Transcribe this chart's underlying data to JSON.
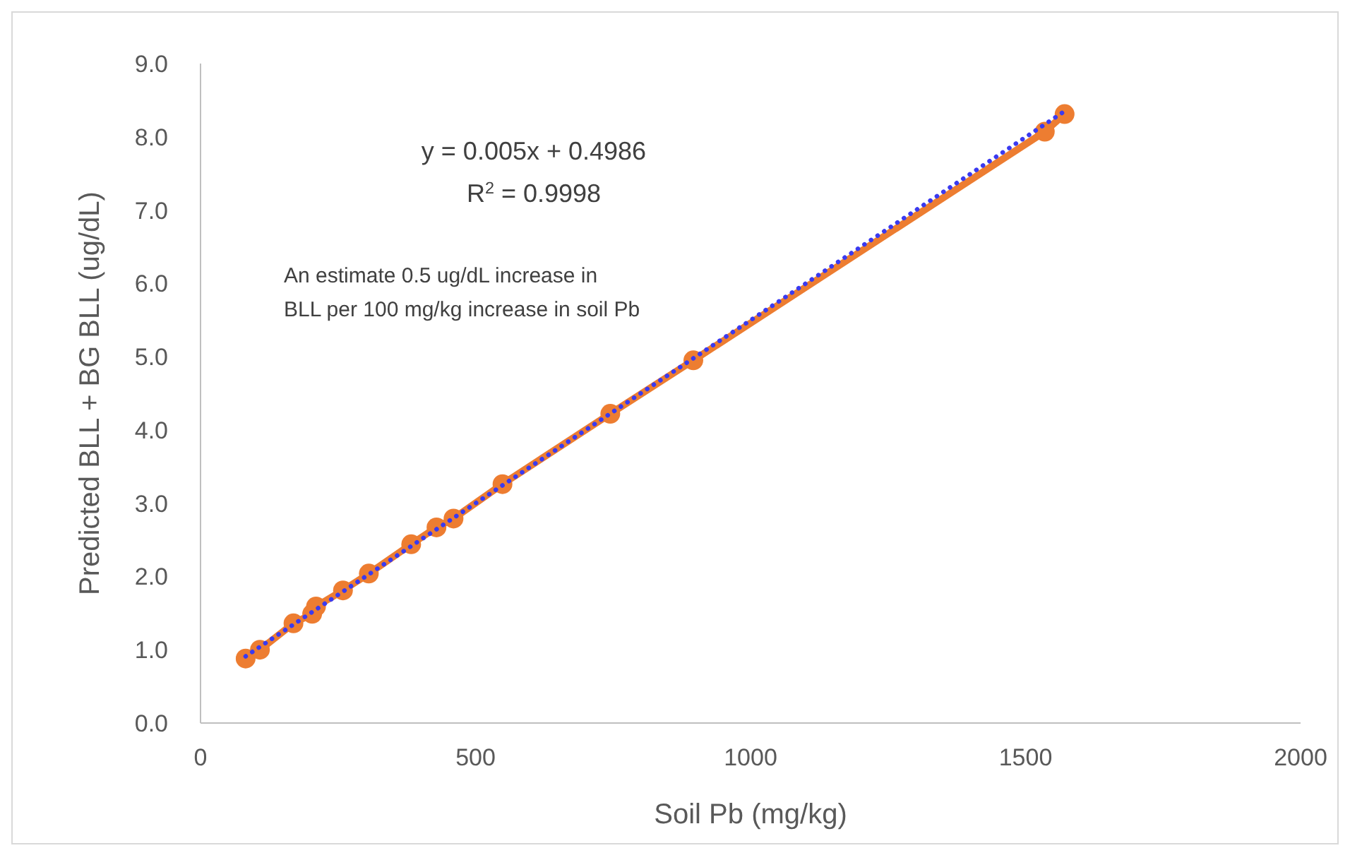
{
  "chart_data": {
    "type": "line",
    "xlabel": "Soil Pb (mg/kg)",
    "ylabel": "Predicted BLL + BG BLL (ug/dL)",
    "xlim": [
      0,
      2000
    ],
    "xticks": [
      0,
      500,
      1000,
      1500,
      2000
    ],
    "ylim": [
      0,
      9
    ],
    "yticks": [
      {
        "value": 0,
        "label": "0.0"
      },
      {
        "value": 1,
        "label": "1.0"
      },
      {
        "value": 2,
        "label": "2.0"
      },
      {
        "value": 3,
        "label": "3.0"
      },
      {
        "value": 4,
        "label": "4.0"
      },
      {
        "value": 5,
        "label": "5.0"
      },
      {
        "value": 6,
        "label": "6.0"
      },
      {
        "value": 7,
        "label": "7.0"
      },
      {
        "value": 8,
        "label": "8.0"
      },
      {
        "value": 9,
        "label": "9.0"
      }
    ],
    "series": [
      {
        "color": "#ed7d31",
        "marker": "circle",
        "line_style": "solid",
        "x": [
          82,
          108,
          169,
          203,
          210,
          259,
          306,
          383,
          429,
          460,
          549,
          745,
          896,
          1535,
          1571
        ],
        "values": [
          0.88,
          1.0,
          1.36,
          1.49,
          1.59,
          1.81,
          2.04,
          2.44,
          2.67,
          2.79,
          3.26,
          4.22,
          4.95,
          8.07,
          8.31
        ]
      },
      {
        "color": "#3a3af0",
        "marker": "none",
        "line_style": "dotted",
        "x": [
          82,
          1571
        ],
        "values": [
          0.91,
          8.35
        ]
      }
    ],
    "annotations": [
      "y = 0.005x + 0.4986",
      "R$^{2}$ = 0.9998",
      "An estimate 0.5 ug/dL increase in\nBLL per 100 mg/kg increase in soil Pb"
    ],
    "grid": false
  }
}
